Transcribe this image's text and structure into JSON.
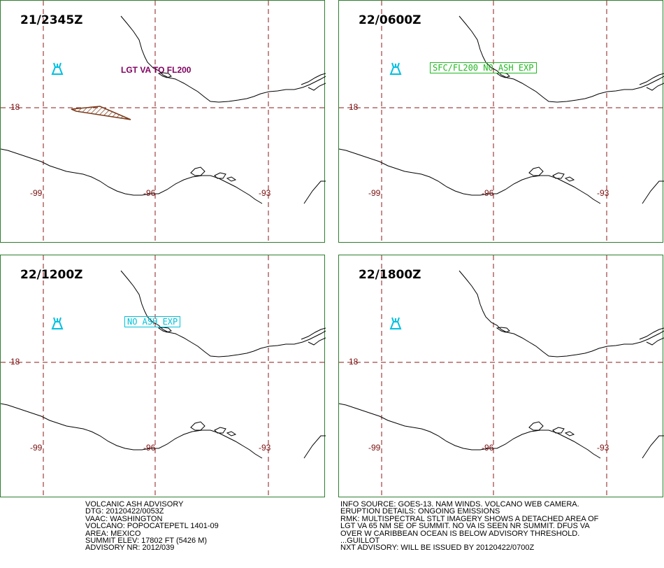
{
  "colors": {
    "panel_border": "#2e7d2e",
    "grid": "#8b1a1a",
    "coast": "#000000",
    "volcano": "#00c0e0",
    "ash_area": "#7a3a1a",
    "label_plain": "#800060",
    "label_green": "#22b822",
    "label_cyan": "#00c0d8"
  },
  "grid": {
    "lat": "18",
    "lons": [
      "-99",
      "-96",
      "-93"
    ]
  },
  "icons": {
    "volcano": "volcano-icon"
  },
  "panels": [
    {
      "time": "21/2345Z",
      "label": "LGT VA TO FL200",
      "label_style": "plain",
      "ash_area": true
    },
    {
      "time": "22/0600Z",
      "label": "SFC/FL200 NO ASH EXP",
      "label_style": "green-box",
      "ash_area": false
    },
    {
      "time": "22/1200Z",
      "label": "NO ASH EXP",
      "label_style": "cyan-box",
      "ash_area": false
    },
    {
      "time": "22/1800Z",
      "label": "",
      "label_style": "none",
      "ash_area": false
    }
  ],
  "advisory_left": [
    "VOLCANIC ASH ADVISORY",
    "DTG: 20120422/0053Z",
    "VAAC: WASHINGTON",
    "VOLCANO: POPOCATEPETL 1401-09",
    "AREA: MEXICO",
    "SUMMIT ELEV: 17802 FT (5426 M)",
    "ADVISORY NR: 2012/039"
  ],
  "advisory_right": [
    "INFO SOURCE: GOES-13. NAM WINDS. VOLCANO WEB CAMERA.",
    "ERUPTION DETAILS: ONGOING EMISSIONS",
    "RMK: MULTISPECTRAL STLT IMAGERY SHOWS A DETACHED AREA OF",
    "LGT VA 65 NM SE OF SUMMIT. NO VA IS SEEN NR SUMMIT. DFUS VA",
    "OVER W CARIBBEAN OCEAN IS BELOW ADVISORY THRESHOLD.",
    "...GUILLOT",
    "NXT ADVISORY: WILL BE ISSUED BY 20120422/0700Z"
  ]
}
